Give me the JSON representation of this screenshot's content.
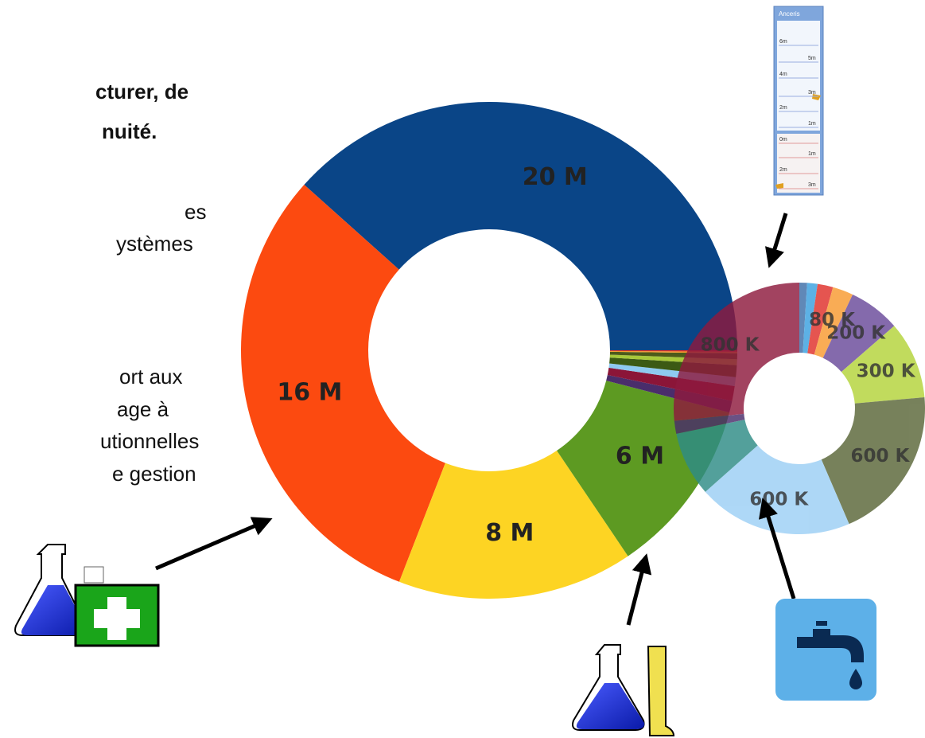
{
  "slide_text": {
    "bold_lines": [
      "cturer, de",
      "nuité."
    ],
    "lines": [
      "es",
      "ystèmes",
      "ort aux",
      "age à",
      "utionnelles",
      "e gestion"
    ]
  },
  "anceris": {
    "title": "Anceris",
    "labels": [
      "6m",
      "5m",
      "4m",
      "3m",
      "2m",
      "1m",
      "0m",
      "1m",
      "2m",
      "3m"
    ]
  },
  "chart_data": [
    {
      "type": "donut",
      "values": [
        20000000,
        16000000,
        8000000,
        6000000,
        400000,
        500000,
        300000,
        400000,
        200000,
        200000,
        50000,
        50000
      ],
      "value_labels": [
        "20 M",
        "16 M",
        "8 M",
        "6 M",
        null,
        null,
        null,
        null,
        null,
        null,
        null,
        null
      ],
      "colors": [
        "#0a4587",
        "#fc4a10",
        "#fdd423",
        "#5d9a22",
        "#4a2d6b",
        "#8b1538",
        "#8ecaf0",
        "#3c5a14",
        "#a8c83a",
        "#4d5a1a",
        "#f59a2a",
        "#e0302a"
      ]
    },
    {
      "type": "donut",
      "values": [
        30000,
        40000,
        60000,
        80000,
        200000,
        300000,
        600000,
        600000,
        250000,
        50000,
        800000
      ],
      "value_labels": [
        null,
        null,
        null,
        "80 K",
        "200 K",
        "300 K",
        "600 K",
        "600 K",
        null,
        null,
        "800 K"
      ],
      "colors": [
        "#3e6ea8",
        "#3aa0e0",
        "#e0302a",
        "#f89a30",
        "#6a4a9a",
        "#b4d43a",
        "#5a6638",
        "#9ccff5",
        "#2e8c86",
        "#4a2d6b",
        "#8e1a3e"
      ]
    }
  ]
}
